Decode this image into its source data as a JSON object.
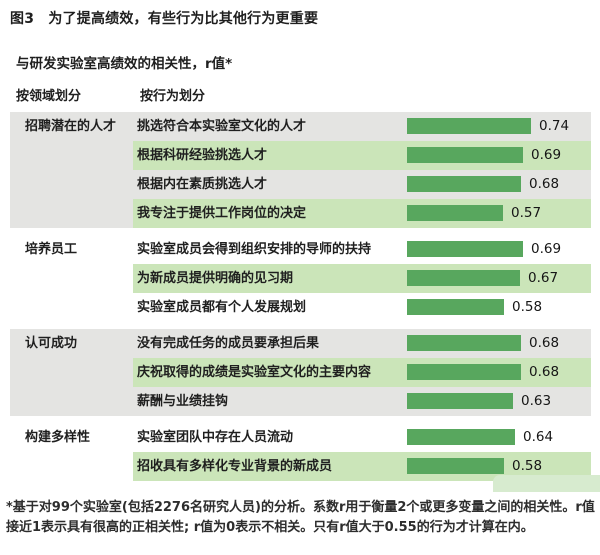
{
  "title": "图3　为了提高绩效，有些行为比其他行为更重要",
  "subtitle": "与研发实验室高绩效的相关性，r值*",
  "column_headers": {
    "domain": "按领域划分",
    "behavior": "按行为划分"
  },
  "footnote": "*基于对99个实验室(包括2276名研究人员)的分析。系数r用于衡量2个或更多变量之间的相关性。r值接近1表示具有很高的正相关性; r值为0表示不相关。只有r值大于0.55的行为才计算在内。",
  "colors": {
    "bar_green": "#58a75e",
    "row_highlight_green": "#cbe5b9",
    "group_background_gray": "#e4e4e2"
  },
  "chart_data": {
    "type": "bar",
    "title": "图3 为了提高绩效，有些行为比其他行为更重要",
    "subtitle": "与研发实验室高绩效的相关性，r值*",
    "xlabel": "r值",
    "xlim": [
      0,
      1
    ],
    "note_threshold": "只有r值大于0.55的行为才计算在内",
    "groups": [
      {
        "domain": "招聘潜在的人才",
        "behaviors": [
          {
            "label": "挑选符合本实验室文化的人才",
            "value": 0.74
          },
          {
            "label": "根据科研经验挑选人才",
            "value": 0.69
          },
          {
            "label": "根据内在素质挑选人才",
            "value": 0.68
          },
          {
            "label": "我专注于提供工作岗位的决定",
            "value": 0.57
          }
        ]
      },
      {
        "domain": "培养员工",
        "behaviors": [
          {
            "label": "实验室成员会得到组织安排的导师的扶持",
            "value": 0.69
          },
          {
            "label": "为新成员提供明确的见习期",
            "value": 0.67
          },
          {
            "label": "实验室成员都有个人发展规划",
            "value": 0.58
          }
        ]
      },
      {
        "domain": "认可成功",
        "behaviors": [
          {
            "label": "没有完成任务的成员要承担后果",
            "value": 0.68
          },
          {
            "label": "庆祝取得的成绩是实验室文化的主要内容",
            "value": 0.68
          },
          {
            "label": "薪酬与业绩挂钩",
            "value": 0.63
          }
        ]
      },
      {
        "domain": "构建多样性",
        "behaviors": [
          {
            "label": "实验室团队中存在人员流动",
            "value": 0.64
          },
          {
            "label": "招收具有多样化专业背景的新成员",
            "value": 0.58
          }
        ]
      }
    ]
  }
}
